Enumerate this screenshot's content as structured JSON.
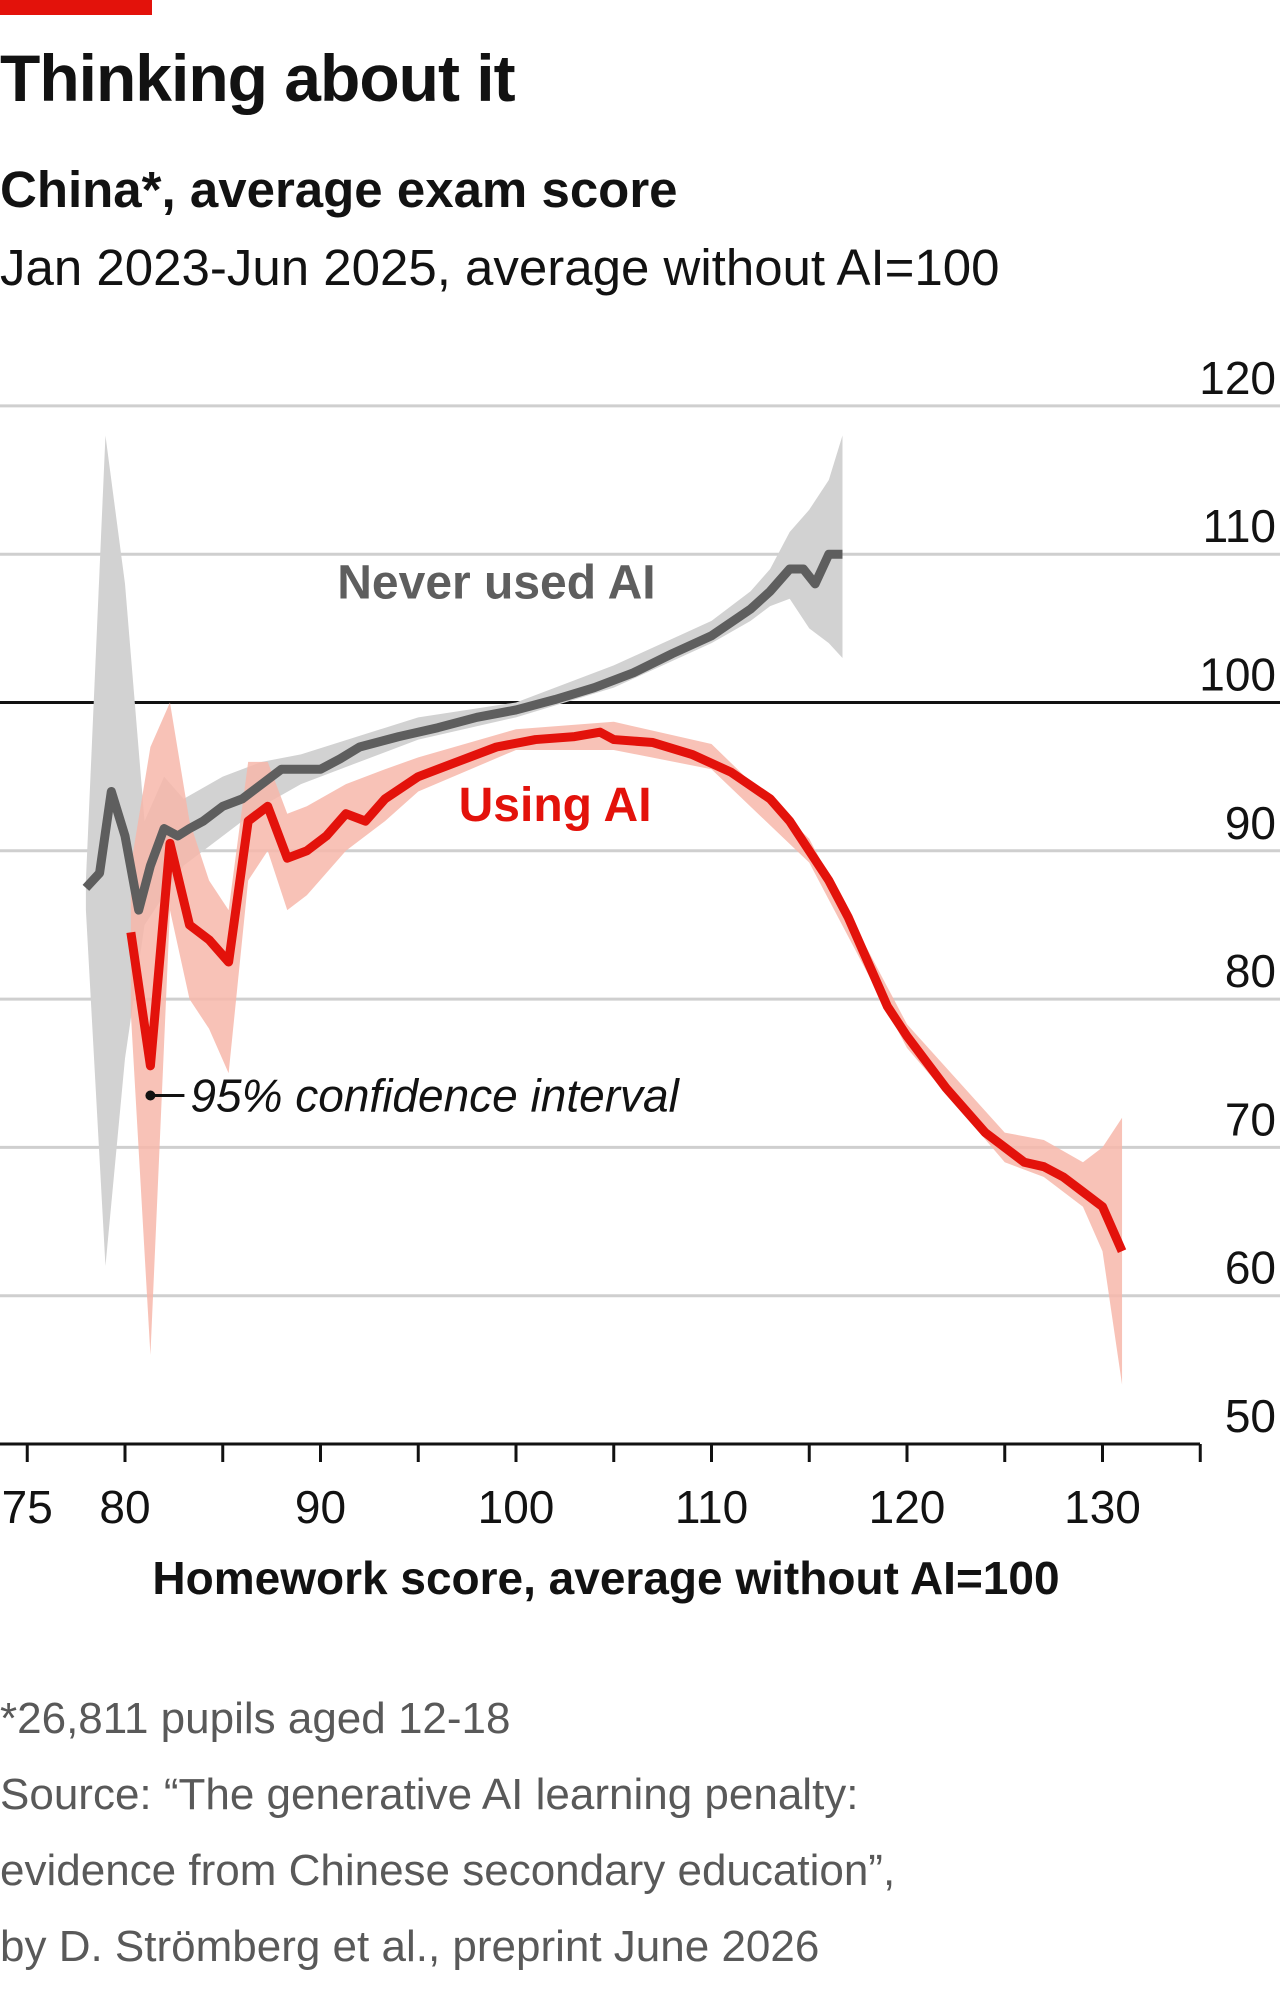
{
  "header": {
    "title": "Thinking about it",
    "subtitle": "China*, average exam score",
    "subsubtitle": "Jan 2023-Jun 2025, average without AI=100"
  },
  "colors": {
    "accent": "#e3120b",
    "using_ai_line": "#e3120b",
    "using_ai_band": "#f7b7aa",
    "never_line": "#5e5e5e",
    "never_band": "#d2d2d2"
  },
  "chart_data": {
    "type": "line",
    "xlabel": "Homework score, average without AI=100",
    "ylabel": "",
    "xlim": [
      74,
      138
    ],
    "ylim": [
      50,
      120
    ],
    "x_ticks": [
      75,
      80,
      90,
      100,
      110,
      120,
      130
    ],
    "y_ticks": [
      50,
      60,
      70,
      80,
      90,
      100,
      110,
      120
    ],
    "reference_line": 100,
    "grid": true,
    "series": [
      {
        "name": "Never used AI",
        "points": [
          [
            78,
            87.5
          ],
          [
            78.7,
            88.5
          ],
          [
            79.3,
            94
          ],
          [
            80,
            91
          ],
          [
            80.7,
            86
          ],
          [
            81.3,
            89
          ],
          [
            82,
            91.5
          ],
          [
            82.7,
            91
          ],
          [
            83.3,
            91.5
          ],
          [
            84,
            92
          ],
          [
            85,
            93
          ],
          [
            86,
            93.5
          ],
          [
            87,
            94.5
          ],
          [
            88,
            95.5
          ],
          [
            89,
            95.5
          ],
          [
            90,
            95.5
          ],
          [
            91,
            96.2
          ],
          [
            92,
            97
          ],
          [
            94,
            97.7
          ],
          [
            96,
            98.3
          ],
          [
            98,
            99
          ],
          [
            100,
            99.5
          ],
          [
            102,
            100.2
          ],
          [
            104,
            101
          ],
          [
            106,
            102
          ],
          [
            108,
            103.3
          ],
          [
            110,
            104.5
          ],
          [
            112,
            106.3
          ],
          [
            113,
            107.5
          ],
          [
            114,
            109
          ],
          [
            114.7,
            109
          ],
          [
            115.3,
            108
          ],
          [
            116,
            110
          ],
          [
            116.7,
            110
          ]
        ],
        "ci": [
          [
            78,
            86,
            88
          ],
          [
            79,
            62,
            118
          ],
          [
            80,
            76,
            108
          ],
          [
            81,
            85,
            92
          ],
          [
            82,
            87,
            95
          ],
          [
            83,
            89,
            93.5
          ],
          [
            85,
            91,
            95
          ],
          [
            87,
            93,
            96
          ],
          [
            89,
            94.5,
            96.5
          ],
          [
            95,
            97.5,
            99
          ],
          [
            100,
            99,
            100
          ],
          [
            105,
            101,
            102.5
          ],
          [
            110,
            104,
            105.5
          ],
          [
            112,
            105.5,
            107.5
          ],
          [
            113,
            106.5,
            109
          ],
          [
            114,
            107,
            111.5
          ],
          [
            115,
            105,
            113
          ],
          [
            116,
            104,
            115
          ],
          [
            116.7,
            103,
            118
          ]
        ]
      },
      {
        "name": "Using AI",
        "points": [
          [
            80.3,
            84.5
          ],
          [
            81.3,
            75.5
          ],
          [
            82.3,
            90.5
          ],
          [
            83.3,
            85
          ],
          [
            84.3,
            84
          ],
          [
            85.3,
            82.5
          ],
          [
            86.3,
            92
          ],
          [
            87.3,
            93
          ],
          [
            88.3,
            89.5
          ],
          [
            89.3,
            90
          ],
          [
            90.3,
            91
          ],
          [
            91.3,
            92.5
          ],
          [
            92.3,
            92
          ],
          [
            93.3,
            93.5
          ],
          [
            95,
            95
          ],
          [
            97,
            96
          ],
          [
            99,
            97
          ],
          [
            101,
            97.5
          ],
          [
            103,
            97.7
          ],
          [
            104.3,
            98
          ],
          [
            105,
            97.5
          ],
          [
            107,
            97.3
          ],
          [
            109,
            96.5
          ],
          [
            111,
            95.3
          ],
          [
            113,
            93.5
          ],
          [
            114,
            92
          ],
          [
            115,
            90
          ],
          [
            116,
            88
          ],
          [
            117,
            85.5
          ],
          [
            118,
            82.5
          ],
          [
            119,
            79.5
          ],
          [
            120,
            77.5
          ],
          [
            122,
            74
          ],
          [
            124,
            71
          ],
          [
            126,
            69
          ],
          [
            127,
            68.7
          ],
          [
            128,
            68
          ],
          [
            129,
            67
          ],
          [
            130,
            66
          ],
          [
            131,
            63
          ]
        ],
        "ci": [
          [
            80.3,
            79,
            89
          ],
          [
            81.3,
            56,
            97
          ],
          [
            82.3,
            86,
            100
          ],
          [
            83.3,
            80,
            92
          ],
          [
            84.3,
            78,
            88
          ],
          [
            85.3,
            75,
            86
          ],
          [
            86.3,
            88,
            96
          ],
          [
            87.3,
            90,
            96
          ],
          [
            88.3,
            86,
            92.5
          ],
          [
            89.3,
            87,
            93
          ],
          [
            91.3,
            90,
            94.5
          ],
          [
            93.3,
            92,
            95.5
          ],
          [
            95,
            94,
            96.3
          ],
          [
            100,
            96.8,
            98.2
          ],
          [
            105,
            96.8,
            98.7
          ],
          [
            110,
            95.5,
            97.2
          ],
          [
            115,
            89.2,
            90.8
          ],
          [
            120,
            76.7,
            78.3
          ],
          [
            125,
            69,
            71
          ],
          [
            127,
            68,
            70.5
          ],
          [
            129,
            66,
            69
          ],
          [
            130,
            63,
            70
          ],
          [
            131,
            54,
            72
          ]
        ]
      }
    ],
    "annotations": [
      {
        "text": "Never used AI",
        "x": 99,
        "y": 107
      },
      {
        "text": "Using AI",
        "x": 102,
        "y": 92
      },
      {
        "text": "95% confidence interval",
        "x": 81.3,
        "y": 73.5
      }
    ]
  },
  "footer": {
    "note": "*26,811 pupils aged 12-18",
    "source_lines": [
      "Source: “The generative AI learning penalty:",
      "evidence from Chinese secondary education”,",
      "by D. Strömberg et al., preprint June 2026"
    ]
  }
}
